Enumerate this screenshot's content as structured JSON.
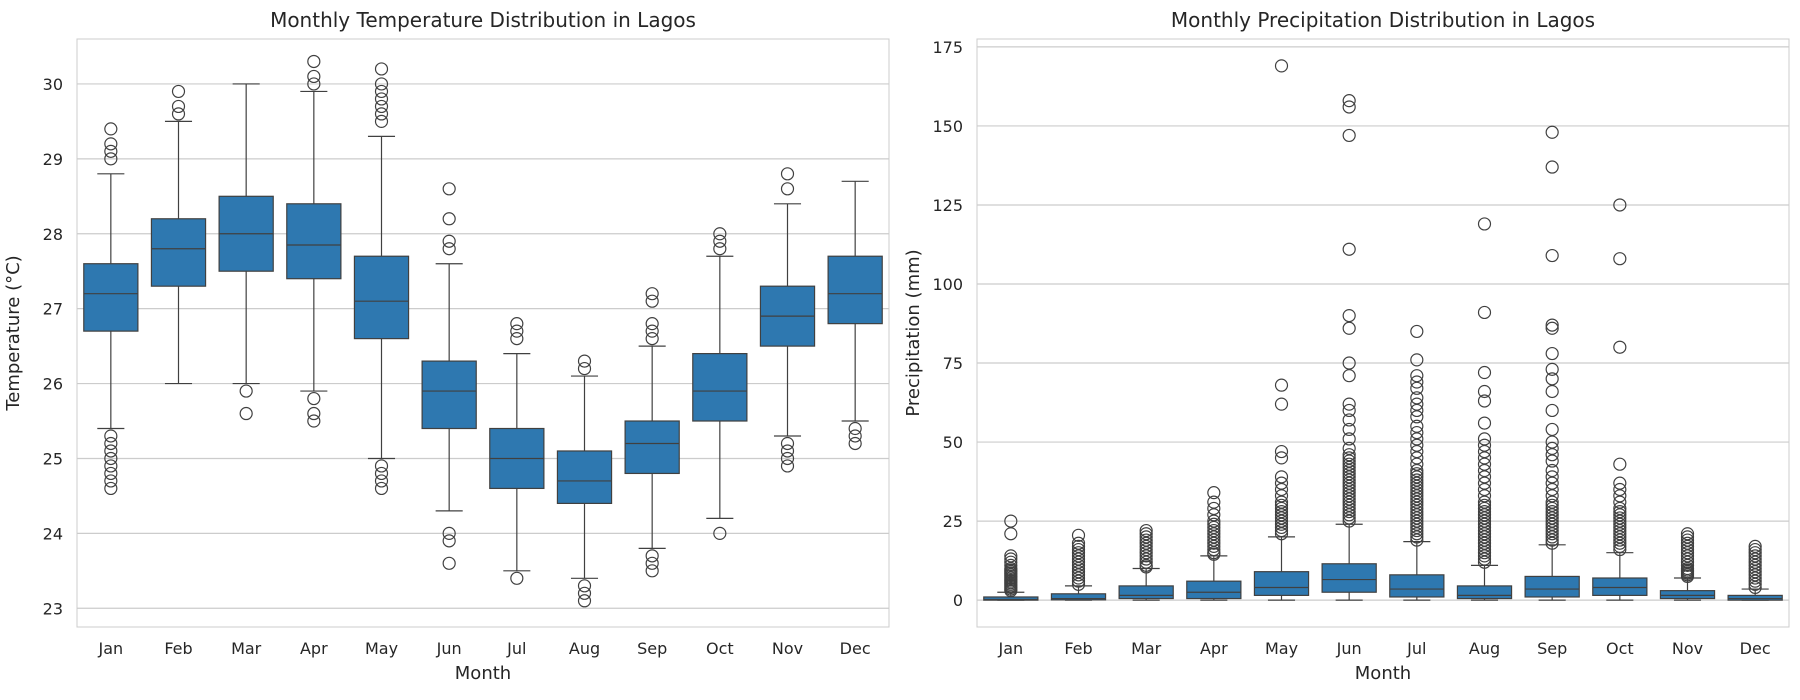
{
  "chart_data": [
    {
      "type": "box",
      "title": "Monthly Temperature Distribution in Lagos",
      "xlabel": "Month",
      "ylabel": "Temperature (°C)",
      "ylim": [
        22.75,
        30.6
      ],
      "yticks": [
        23,
        24,
        25,
        26,
        27,
        28,
        29,
        30
      ],
      "grid": "y",
      "color": "#2e78b0",
      "categories": [
        "Jan",
        "Feb",
        "Mar",
        "Apr",
        "May",
        "Jun",
        "Jul",
        "Aug",
        "Sep",
        "Oct",
        "Nov",
        "Dec"
      ],
      "boxes": [
        {
          "low": 25.4,
          "q1": 26.7,
          "median": 27.2,
          "q3": 27.6,
          "high": 28.8,
          "outliers": [
            29.4,
            29.2,
            29.1,
            29.0,
            25.3,
            25.2,
            25.1,
            25.0,
            24.9,
            24.8,
            24.7,
            24.6
          ]
        },
        {
          "low": 26.0,
          "q1": 27.3,
          "median": 27.8,
          "q3": 28.2,
          "high": 29.5,
          "outliers": [
            29.9,
            29.7,
            29.6
          ]
        },
        {
          "low": 26.0,
          "q1": 27.5,
          "median": 28.0,
          "q3": 28.5,
          "high": 30.0,
          "outliers": [
            25.9,
            25.6
          ]
        },
        {
          "low": 25.9,
          "q1": 27.4,
          "median": 27.85,
          "q3": 28.4,
          "high": 29.9,
          "outliers": [
            30.3,
            30.1,
            30.0,
            25.8,
            25.6,
            25.5
          ]
        },
        {
          "low": 25.0,
          "q1": 26.6,
          "median": 27.1,
          "q3": 27.7,
          "high": 29.3,
          "outliers": [
            30.2,
            30.0,
            29.9,
            29.8,
            29.7,
            29.6,
            29.5,
            24.9,
            24.8,
            24.7,
            24.6
          ]
        },
        {
          "low": 24.3,
          "q1": 25.4,
          "median": 25.9,
          "q3": 26.3,
          "high": 27.6,
          "outliers": [
            28.6,
            28.2,
            27.9,
            27.8,
            24.0,
            23.9,
            23.6
          ]
        },
        {
          "low": 23.5,
          "q1": 24.6,
          "median": 25.0,
          "q3": 25.4,
          "high": 26.4,
          "outliers": [
            26.8,
            26.7,
            26.6,
            23.4
          ]
        },
        {
          "low": 23.4,
          "q1": 24.4,
          "median": 24.7,
          "q3": 25.1,
          "high": 26.1,
          "outliers": [
            26.3,
            26.2,
            23.3,
            23.2,
            23.1
          ]
        },
        {
          "low": 23.8,
          "q1": 24.8,
          "median": 25.2,
          "q3": 25.5,
          "high": 26.5,
          "outliers": [
            27.2,
            27.1,
            26.8,
            26.7,
            26.6,
            23.7,
            23.6,
            23.5
          ]
        },
        {
          "low": 24.2,
          "q1": 25.5,
          "median": 25.9,
          "q3": 26.4,
          "high": 27.7,
          "outliers": [
            28.0,
            27.9,
            27.8,
            24.0
          ]
        },
        {
          "low": 25.3,
          "q1": 26.5,
          "median": 26.9,
          "q3": 27.3,
          "high": 28.4,
          "outliers": [
            28.8,
            28.6,
            25.2,
            25.1,
            25.0,
            24.9
          ]
        },
        {
          "low": 25.5,
          "q1": 26.8,
          "median": 27.2,
          "q3": 27.7,
          "high": 28.7,
          "outliers": [
            25.4,
            25.3,
            25.2
          ]
        }
      ]
    },
    {
      "type": "box",
      "title": "Monthly Precipitation Distribution in Lagos",
      "xlabel": "Month",
      "ylabel": "Precipitation (mm)",
      "ylim": [
        -8.5,
        177.5
      ],
      "yticks": [
        0,
        25,
        50,
        75,
        100,
        125,
        150,
        175
      ],
      "grid": "y",
      "color": "#2e78b0",
      "categories": [
        "Jan",
        "Feb",
        "Mar",
        "Apr",
        "May",
        "Jun",
        "Jul",
        "Aug",
        "Sep",
        "Oct",
        "Nov",
        "Dec"
      ],
      "boxes": [
        {
          "low": 0,
          "q1": 0,
          "median": 0.2,
          "q3": 1.0,
          "high": 2.5,
          "outliers": [
            25,
            21,
            14,
            13,
            12,
            11,
            10,
            9.5,
            9,
            8.5,
            8,
            7.5,
            7,
            6.5,
            6,
            5.5,
            5,
            4.5,
            4,
            3.5,
            3
          ]
        },
        {
          "low": 0,
          "q1": 0.1,
          "median": 0.5,
          "q3": 2.0,
          "high": 4.5,
          "outliers": [
            20.5,
            18,
            17,
            16,
            15,
            14,
            13,
            12,
            11,
            10,
            9,
            8,
            7,
            6,
            5
          ]
        },
        {
          "low": 0,
          "q1": 0.5,
          "median": 1.5,
          "q3": 4.5,
          "high": 10,
          "outliers": [
            22,
            21,
            20,
            19,
            18,
            17,
            16,
            15,
            14,
            13,
            12,
            11,
            10.5
          ]
        },
        {
          "low": 0,
          "q1": 0.5,
          "median": 2.5,
          "q3": 6.0,
          "high": 14,
          "outliers": [
            34,
            31,
            29,
            27,
            25,
            24,
            23,
            22,
            21,
            20,
            19,
            18,
            17,
            16,
            15,
            14.5
          ]
        },
        {
          "low": 0,
          "q1": 1.5,
          "median": 4.0,
          "q3": 9.0,
          "high": 20,
          "outliers": [
            169,
            68,
            62,
            47,
            45,
            39,
            37,
            35,
            33,
            31,
            30,
            29,
            28,
            27,
            26,
            25,
            24,
            23,
            22,
            21
          ]
        },
        {
          "low": 0,
          "q1": 2.5,
          "median": 6.5,
          "q3": 11.5,
          "high": 24,
          "outliers": [
            158,
            156,
            147,
            111,
            90,
            86,
            75,
            71,
            62,
            60,
            57,
            54,
            51,
            48,
            46,
            45,
            44,
            43,
            42,
            41,
            40,
            39,
            38,
            37,
            36,
            35,
            34,
            33,
            32,
            31,
            30,
            29,
            28,
            27,
            26,
            25
          ]
        },
        {
          "low": 0,
          "q1": 1.0,
          "median": 3.5,
          "q3": 8.0,
          "high": 18.5,
          "outliers": [
            85,
            76,
            71,
            69,
            67,
            64,
            62,
            60,
            58,
            55,
            53,
            51,
            49,
            47,
            45,
            43,
            41,
            40,
            39,
            38,
            37,
            36,
            35,
            34,
            33,
            32,
            31,
            30,
            29,
            28,
            27,
            26,
            25,
            24,
            23,
            22,
            21,
            20,
            19
          ]
        },
        {
          "low": 0,
          "q1": 0.5,
          "median": 1.5,
          "q3": 4.5,
          "high": 11,
          "outliers": [
            119,
            91,
            72,
            66,
            63,
            56,
            51,
            49,
            47,
            45,
            43,
            41,
            39,
            37,
            35,
            33,
            31,
            30,
            29,
            28,
            27,
            26,
            25,
            24,
            23,
            22,
            21,
            20,
            19,
            18,
            17,
            16,
            15,
            14,
            13,
            12
          ]
        },
        {
          "low": 0,
          "q1": 1.0,
          "median": 3.5,
          "q3": 7.5,
          "high": 17.5,
          "outliers": [
            148,
            137,
            109,
            87,
            86,
            78,
            73,
            70,
            66,
            60,
            54,
            50,
            48,
            46,
            44,
            41,
            39,
            37,
            35,
            33,
            31,
            30,
            29,
            28,
            27,
            26,
            25,
            24,
            23,
            22,
            21,
            20,
            19,
            18
          ]
        },
        {
          "low": 0,
          "q1": 1.5,
          "median": 4.0,
          "q3": 7.0,
          "high": 15,
          "outliers": [
            125,
            108,
            80,
            43,
            37,
            35,
            33,
            31,
            29,
            28,
            27,
            26,
            25,
            24,
            23,
            22,
            21,
            20,
            19,
            18,
            17,
            16
          ]
        },
        {
          "low": 0,
          "q1": 0.5,
          "median": 1.5,
          "q3": 3.0,
          "high": 7,
          "outliers": [
            21,
            20,
            19,
            18,
            17,
            16,
            15,
            14,
            13,
            12,
            11,
            10,
            9.5,
            9,
            8.5,
            8,
            7.5
          ]
        },
        {
          "low": 0,
          "q1": 0,
          "median": 0.5,
          "q3": 1.5,
          "high": 3.5,
          "outliers": [
            17,
            16,
            15,
            14,
            13,
            12,
            11,
            10,
            9,
            8,
            7,
            6,
            5,
            4
          ]
        }
      ]
    }
  ]
}
